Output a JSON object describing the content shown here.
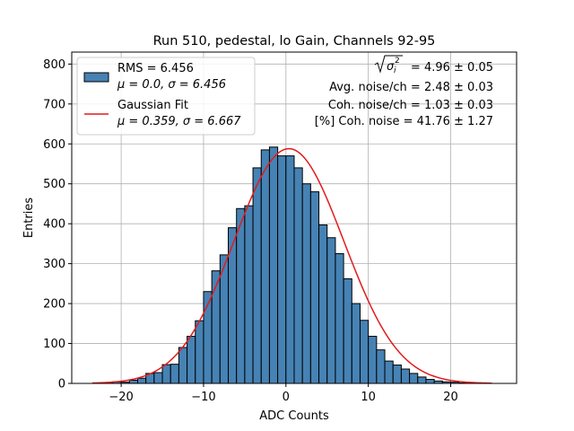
{
  "chart_data": {
    "type": "bar",
    "title": "Run 510, pedestal, lo Gain, Channels 92-95",
    "xlabel": "ADC Counts",
    "ylabel": "Entries",
    "xlim": [
      -26,
      28
    ],
    "ylim": [
      0,
      830
    ],
    "xticks": [
      -20,
      -10,
      0,
      10,
      20
    ],
    "xtick_labels": [
      "−20",
      "−10",
      "0",
      "10",
      "20"
    ],
    "yticks": [
      0,
      100,
      200,
      300,
      400,
      500,
      600,
      700,
      800
    ],
    "ytick_labels": [
      "0",
      "100",
      "200",
      "300",
      "400",
      "500",
      "600",
      "700",
      "800"
    ],
    "grid": true,
    "bin_width": 1,
    "bin_edges_start": -22,
    "counts": [
      2,
      4,
      3,
      8,
      13,
      25,
      27,
      47,
      48,
      90,
      118,
      157,
      230,
      282,
      322,
      390,
      438,
      445,
      540,
      585,
      592,
      570,
      570,
      540,
      500,
      480,
      397,
      365,
      325,
      262,
      200,
      158,
      118,
      84,
      56,
      46,
      36,
      25,
      16,
      10,
      6,
      4,
      3,
      1,
      1
    ],
    "fit": {
      "name": "Gaussian Fit",
      "mu": 0.359,
      "sigma": 6.667,
      "amplitude": 588,
      "x_range": [
        -23.5,
        25
      ],
      "color": "#e41a1c"
    },
    "hist_color": "#4682b4",
    "legend": {
      "position": "upper-left",
      "entries": [
        {
          "line1": "RMS = 6.456",
          "line2": "μ = 0.0, σ = 6.456"
        },
        {
          "line1": "Gaussian Fit",
          "line2": "μ = 0.359, σ = 6.667"
        }
      ]
    },
    "annotations": [
      " = 4.96 ± 0.05",
      "Avg. noise/ch = 2.48 ± 0.03",
      "Coh. noise/ch = 1.03 ± 0.03",
      "[%] Coh. noise = 41.76 ± 1.27"
    ],
    "annotation_sqrt_symbol": "σ",
    "annotation_sqrt_sub": "i",
    "annotation_sqrt_sup": "2"
  }
}
